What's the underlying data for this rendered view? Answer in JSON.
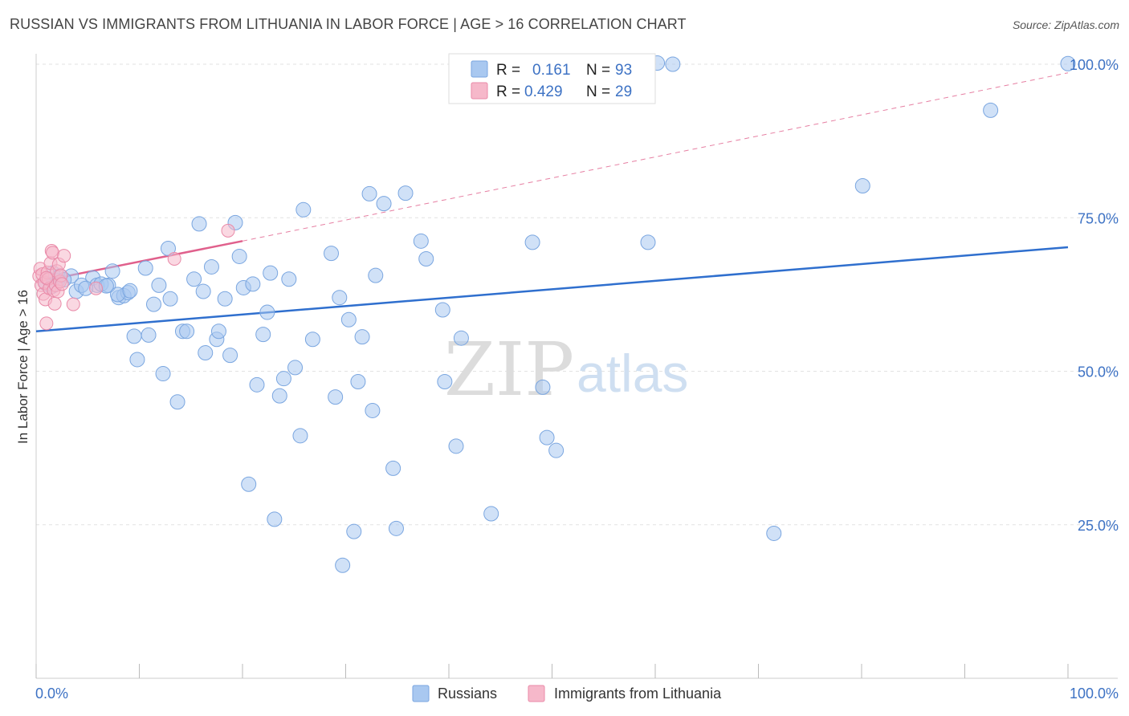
{
  "header": {
    "title": "RUSSIAN VS IMMIGRANTS FROM LITHUANIA IN LABOR FORCE | AGE > 16 CORRELATION CHART",
    "source": "Source: ZipAtlas.com"
  },
  "watermark": {
    "zip": "ZIP",
    "atlas": "atlas"
  },
  "colors": {
    "russians_fill": "#a9c8f0",
    "russians_stroke": "#7aa6e0",
    "russians_line": "#2f6fce",
    "lithuania_fill": "#f6b8ca",
    "lithuania_stroke": "#e98aa8",
    "lithuania_line": "#e0608c"
  },
  "legend": {
    "rows": [
      {
        "r_label": "R =",
        "r_value": "0.161",
        "n_label": "N =",
        "n_value": "93"
      },
      {
        "r_label": "R =",
        "r_value": "0.429",
        "n_label": "N =",
        "n_value": "29"
      }
    ]
  },
  "chart_data": {
    "type": "scatter",
    "title": "RUSSIAN VS IMMIGRANTS FROM LITHUANIA IN LABOR FORCE | AGE > 16 CORRELATION CHART",
    "xlabel": "",
    "ylabel": "In Labor Force | Age > 16",
    "xlim": [
      0,
      100
    ],
    "ylim": [
      0,
      102
    ],
    "x_tick_labels": [
      "0.0%",
      "100.0%"
    ],
    "y_ticks": [
      25,
      50,
      75,
      100
    ],
    "y_tick_labels": [
      "25.0%",
      "50.0%",
      "75.0%",
      "100.0%"
    ],
    "grid": true,
    "legend_position": "top-center",
    "series": [
      {
        "name": "Russians",
        "r": 0.161,
        "n": 93,
        "trend": {
          "x": [
            0,
            100
          ],
          "y": [
            56.5,
            70.2
          ],
          "style": "solid"
        },
        "points": [
          [
            1.2,
            65.0
          ],
          [
            1.6,
            66.0
          ],
          [
            2.1,
            64.8
          ],
          [
            2.3,
            65.5
          ],
          [
            1.5,
            63.8
          ],
          [
            3.4,
            65.5
          ],
          [
            3.9,
            63.0
          ],
          [
            4.4,
            64.0
          ],
          [
            5.5,
            65.2
          ],
          [
            5.9,
            64.0
          ],
          [
            6.3,
            64.2
          ],
          [
            7.0,
            64.0
          ],
          [
            7.4,
            66.3
          ],
          [
            8.0,
            62.0
          ],
          [
            8.5,
            62.3
          ],
          [
            8.9,
            62.8
          ],
          [
            9.5,
            55.7
          ],
          [
            9.8,
            51.9
          ],
          [
            10.6,
            66.8
          ],
          [
            10.9,
            55.9
          ],
          [
            11.4,
            60.9
          ],
          [
            11.9,
            64.0
          ],
          [
            12.3,
            49.6
          ],
          [
            12.8,
            70.0
          ],
          [
            13.0,
            61.8
          ],
          [
            13.7,
            45.0
          ],
          [
            14.2,
            56.5
          ],
          [
            14.6,
            56.5
          ],
          [
            15.3,
            65.0
          ],
          [
            15.8,
            74.0
          ],
          [
            16.2,
            63.0
          ],
          [
            16.4,
            53.0
          ],
          [
            17.0,
            67.0
          ],
          [
            17.5,
            55.2
          ],
          [
            17.7,
            56.5
          ],
          [
            18.3,
            61.8
          ],
          [
            18.8,
            52.6
          ],
          [
            19.3,
            74.2
          ],
          [
            19.7,
            68.7
          ],
          [
            20.1,
            63.6
          ],
          [
            20.6,
            31.6
          ],
          [
            21.0,
            64.2
          ],
          [
            21.4,
            47.8
          ],
          [
            22.0,
            56.0
          ],
          [
            22.4,
            59.6
          ],
          [
            22.7,
            66.0
          ],
          [
            23.1,
            25.9
          ],
          [
            23.6,
            46.0
          ],
          [
            24.0,
            48.8
          ],
          [
            24.5,
            65.0
          ],
          [
            25.1,
            50.6
          ],
          [
            25.6,
            39.5
          ],
          [
            25.9,
            76.3
          ],
          [
            26.8,
            55.2
          ],
          [
            28.6,
            69.2
          ],
          [
            29.0,
            45.8
          ],
          [
            29.4,
            62.0
          ],
          [
            29.7,
            18.4
          ],
          [
            30.3,
            58.4
          ],
          [
            30.8,
            23.9
          ],
          [
            31.2,
            48.3
          ],
          [
            31.6,
            55.6
          ],
          [
            32.3,
            78.9
          ],
          [
            32.6,
            43.6
          ],
          [
            32.9,
            65.6
          ],
          [
            33.7,
            77.3
          ],
          [
            34.6,
            34.2
          ],
          [
            34.9,
            24.4
          ],
          [
            35.8,
            79.0
          ],
          [
            37.3,
            71.2
          ],
          [
            37.8,
            68.3
          ],
          [
            39.4,
            60.0
          ],
          [
            39.6,
            48.3
          ],
          [
            40.7,
            37.8
          ],
          [
            41.2,
            55.4
          ],
          [
            44.1,
            26.8
          ],
          [
            48.1,
            71.0
          ],
          [
            49.1,
            47.4
          ],
          [
            49.5,
            39.2
          ],
          [
            50.4,
            37.1
          ],
          [
            59.3,
            71.0
          ],
          [
            60.2,
            100.2
          ],
          [
            61.7,
            100.0
          ],
          [
            71.5,
            23.6
          ],
          [
            80.1,
            80.2
          ],
          [
            92.5,
            92.5
          ],
          [
            100.0,
            100.1
          ],
          [
            1.0,
            64.2
          ],
          [
            2.7,
            64.9
          ],
          [
            4.8,
            63.5
          ],
          [
            6.8,
            63.9
          ],
          [
            7.9,
            62.5
          ],
          [
            9.1,
            63.1
          ]
        ]
      },
      {
        "name": "Immigrants from Lithuania",
        "r": 0.429,
        "n": 29,
        "trend": {
          "x": [
            0,
            20
          ],
          "y": [
            64.5,
            71.2
          ],
          "style": "solid",
          "extended_to": [
            100,
            98.6
          ],
          "extended_style": "dashed"
        },
        "points": [
          [
            0.3,
            65.5
          ],
          [
            0.4,
            66.7
          ],
          [
            0.5,
            64.0
          ],
          [
            0.6,
            65.8
          ],
          [
            0.7,
            62.6
          ],
          [
            0.8,
            64.4
          ],
          [
            0.9,
            61.7
          ],
          [
            1.0,
            57.8
          ],
          [
            1.1,
            66.1
          ],
          [
            1.2,
            65.0
          ],
          [
            1.3,
            63.5
          ],
          [
            1.4,
            67.6
          ],
          [
            1.5,
            69.6
          ],
          [
            1.6,
            69.3
          ],
          [
            1.7,
            63.2
          ],
          [
            1.8,
            61.0
          ],
          [
            1.9,
            64.0
          ],
          [
            2.0,
            66.3
          ],
          [
            2.1,
            63.0
          ],
          [
            2.2,
            67.4
          ],
          [
            2.3,
            64.6
          ],
          [
            2.4,
            65.6
          ],
          [
            2.5,
            64.2
          ],
          [
            2.7,
            68.8
          ],
          [
            3.6,
            60.9
          ],
          [
            5.8,
            63.5
          ],
          [
            13.4,
            68.3
          ],
          [
            18.6,
            72.9
          ],
          [
            1.0,
            65.2
          ]
        ]
      }
    ]
  },
  "bottom_legend": {
    "items": [
      {
        "label": "Russians"
      },
      {
        "label": "Immigrants from Lithuania"
      }
    ]
  }
}
